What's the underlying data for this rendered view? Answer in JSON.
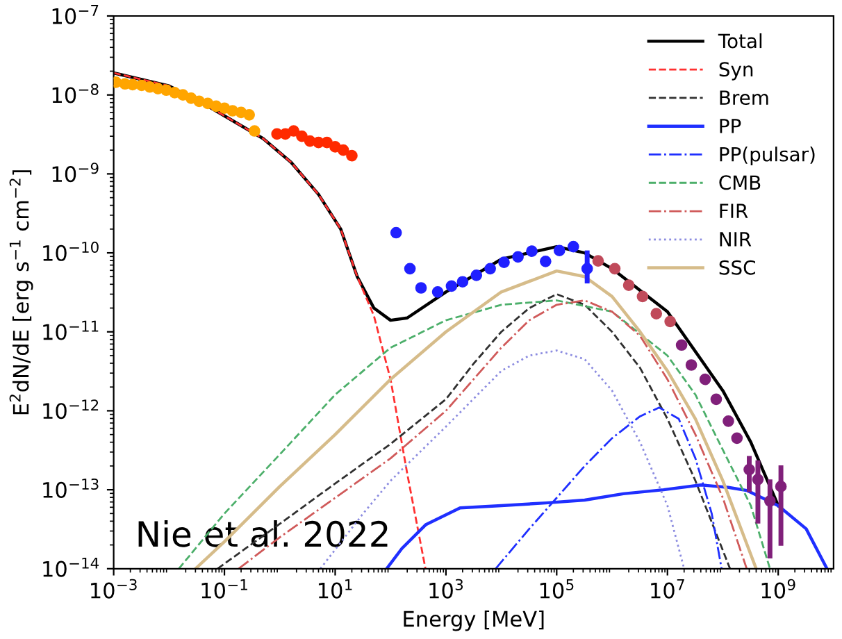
{
  "chart_data": {
    "type": "line",
    "xlabel": "Energy [MeV]",
    "ylabel": "E$^{2}$dN/dE [erg s$^{−1}$ cm$^{−2}$]",
    "log": "xy",
    "xlim": [
      0.001,
      10000000000.0
    ],
    "ylim": [
      1e-14,
      1e-07
    ],
    "xticks": [
      {
        "value": 0.001,
        "label": "10$^{−3}$"
      },
      {
        "value": 0.1,
        "label": "10$^{−1}$"
      },
      {
        "value": 10,
        "label": "10$^{1}$"
      },
      {
        "value": 1000,
        "label": "10$^{3}$"
      },
      {
        "value": 100000.0,
        "label": "10$^{5}$"
      },
      {
        "value": 10000000.0,
        "label": "10$^{7}$"
      },
      {
        "value": 1000000000.0,
        "label": "10$^{9}$"
      }
    ],
    "yticks": [
      {
        "value": 1e-14,
        "label": "10$^{−14}$"
      },
      {
        "value": 1e-13,
        "label": "10$^{−13}$"
      },
      {
        "value": 1e-12,
        "label": "10$^{−12}$"
      },
      {
        "value": 1e-11,
        "label": "10$^{−11}$"
      },
      {
        "value": 1e-10,
        "label": "10$^{−10}$"
      },
      {
        "value": 1e-09,
        "label": "10$^{−9}$"
      },
      {
        "value": 1e-08,
        "label": "10$^{−8}$"
      },
      {
        "value": 1e-07,
        "label": "10$^{−7}$"
      }
    ],
    "grid": false,
    "legend": "top right",
    "annotations": [
      "Nie et al. 2022"
    ],
    "series": [
      {
        "name": "Total",
        "type": "line",
        "line_style": "solid",
        "color": "#000000",
        "x": [
          0.001,
          0.01,
          0.056,
          0.5,
          1.6,
          5,
          12.6,
          25,
          50,
          100,
          200,
          1000,
          10000,
          100000,
          320000,
          1000000,
          10000000,
          100000000,
          320000000,
          1000000000
        ],
        "values": [
          1.9e-08,
          1.3e-08,
          6.9e-09,
          2.8e-09,
          1.4e-09,
          5.5e-10,
          2e-10,
          5e-11,
          2e-11,
          1.4e-11,
          1.5e-11,
          3.2e-11,
          8.3e-11,
          1.2e-10,
          1e-10,
          6.3e-11,
          1.8e-11,
          1.8e-12,
          4e-13,
          6.3e-14
        ]
      },
      {
        "name": "Syn",
        "type": "line",
        "line_style": "dashed",
        "color": "#ff3030",
        "x": [
          0.001,
          0.01,
          0.056,
          0.5,
          1.6,
          5,
          12.6,
          25,
          50,
          100,
          200,
          427
        ],
        "values": [
          1.9e-08,
          1.3e-08,
          6.9e-09,
          2.8e-09,
          1.4e-09,
          5.5e-10,
          2e-10,
          5e-11,
          1.6e-11,
          2.5e-12,
          1.6e-13,
          1e-14
        ]
      },
      {
        "name": "Brem",
        "type": "line",
        "line_style": "dashed",
        "color": "#303030",
        "x": [
          0.075,
          1,
          10,
          100,
          1000,
          3200,
          10000,
          32000,
          100000,
          320000,
          1000000,
          3200000,
          10000000,
          32000000,
          135000000
        ],
        "values": [
          1e-14,
          3.7e-14,
          1.2e-13,
          3.8e-13,
          1.4e-12,
          4e-12,
          1e-11,
          2e-11,
          3e-11,
          2.2e-11,
          1e-11,
          3.5e-12,
          7.9e-13,
          1.3e-13,
          1e-14
        ]
      },
      {
        "name": "PP",
        "type": "line",
        "line_style": "solid",
        "color": "#1f2fff",
        "x": [
          85,
          160,
          430,
          1800,
          10000,
          63000,
          320000,
          1600000,
          8500000,
          40000000,
          126000000,
          270000000,
          1000000000,
          3200000000,
          7600000000
        ],
        "values": [
          1e-14,
          1.8e-14,
          3.6e-14,
          5.9e-14,
          6.3e-14,
          6.8e-14,
          7.4e-14,
          8.9e-14,
          1e-13,
          1.15e-13,
          1.07e-13,
          9.8e-14,
          6.3e-14,
          3.2e-14,
          1e-14
        ]
      },
      {
        "name": "PP(pulsar)",
        "type": "line",
        "line_style": "dashdot",
        "color": "#1f2fff",
        "x": [
          7900,
          32000,
          100000,
          320000,
          1000000,
          3200000,
          7100000,
          16000000,
          32000000,
          63000000,
          95000000
        ],
        "values": [
          1e-14,
          3.2e-14,
          7.9e-14,
          2e-13,
          4.5e-13,
          8.5e-13,
          1.1e-12,
          7.9e-13,
          2.5e-13,
          5e-14,
          1e-14
        ]
      },
      {
        "name": "CMB",
        "type": "line",
        "line_style": "dashed",
        "color": "#4caf6a",
        "x": [
          0.015,
          0.1,
          1,
          10,
          100,
          1000,
          10000,
          100000,
          1000000,
          10000000,
          32000000,
          100000000,
          320000000,
          710000000
        ],
        "values": [
          1e-14,
          5e-14,
          2.8e-13,
          1.6e-12,
          6.3e-12,
          1.4e-11,
          2.2e-11,
          2.5e-11,
          1.8e-11,
          5e-12,
          1.6e-12,
          3.2e-13,
          6.3e-14,
          1e-14
        ]
      },
      {
        "name": "FIR",
        "type": "line",
        "line_style": "dashdot",
        "color": "#d05a5a",
        "x": [
          0.18,
          1,
          10,
          100,
          1000,
          10000,
          32000,
          100000,
          320000,
          1000000,
          3200000,
          10000000,
          32000000,
          100000000,
          270000000
        ],
        "values": [
          1e-14,
          2.5e-14,
          7.9e-14,
          2.5e-13,
          1e-12,
          6.3e-12,
          1.4e-11,
          2.2e-11,
          2.5e-11,
          1.8e-11,
          8.9e-12,
          2.5e-12,
          5e-13,
          7.9e-14,
          1e-14
        ]
      },
      {
        "name": "NIR",
        "type": "line",
        "line_style": "dotted",
        "color": "#8c8ce0",
        "x": [
          5.4,
          32,
          100,
          1000,
          10000,
          32000,
          100000,
          320000,
          1000000,
          3200000,
          10000000,
          20000000
        ],
        "values": [
          1e-14,
          5e-14,
          1.3e-13,
          6.3e-13,
          3.2e-12,
          5e-12,
          5.8e-12,
          4.5e-12,
          1.8e-12,
          4e-13,
          6.3e-14,
          1e-14
        ]
      },
      {
        "name": "SSC",
        "type": "line",
        "line_style": "solid",
        "color": "#d6bc8a",
        "x": [
          0.03,
          0.1,
          1,
          10,
          100,
          1000,
          10000,
          100000,
          320000,
          1000000,
          3200000,
          10000000,
          32000000,
          100000000,
          400000000
        ],
        "values": [
          1e-14,
          2.2e-14,
          1.1e-13,
          5e-13,
          2.5e-12,
          1e-11,
          3.2e-11,
          5.9e-11,
          5e-11,
          2.8e-11,
          1e-11,
          3.2e-12,
          7.9e-13,
          1.3e-13,
          1e-14
        ]
      },
      {
        "type": "scatter",
        "marker": "circle",
        "color": "#ffa500",
        "x": [
          0.0011,
          0.0016,
          0.0022,
          0.0032,
          0.0045,
          0.0063,
          0.0089,
          0.0126,
          0.0178,
          0.025,
          0.035,
          0.05,
          0.071,
          0.1,
          0.14,
          0.2,
          0.28,
          0.35
        ],
        "values": [
          1.45e-08,
          1.38e-08,
          1.35e-08,
          1.32e-08,
          1.26e-08,
          1.2e-08,
          1.15e-08,
          1.07e-08,
          1e-08,
          9.1e-09,
          8.3e-09,
          7.8e-09,
          7.2e-09,
          6.8e-09,
          6.3e-09,
          6e-09,
          5.6e-09,
          3.5e-09
        ]
      },
      {
        "type": "scatter",
        "marker": "circle",
        "color": "#ff2a00",
        "x": [
          0.89,
          1.26,
          1.78,
          2.5,
          3.5,
          5,
          7.1,
          10,
          14,
          20
        ],
        "values": [
          3.2e-09,
          3.2e-09,
          3.5e-09,
          3e-09,
          2.6e-09,
          2.5e-09,
          2.5e-09,
          2.2e-09,
          2e-09,
          1.7e-09
        ]
      },
      {
        "type": "scatter",
        "marker": "circle",
        "color": "#2020ff",
        "x": [
          126,
          224,
          355,
          710,
          1260,
          2000,
          3550,
          6300,
          11200,
          20000,
          35500,
          63000,
          112000,
          200000,
          355000
        ],
        "values": [
          1.8e-10,
          6.3e-11,
          3.6e-11,
          3.2e-11,
          3.8e-11,
          4.3e-11,
          5.2e-11,
          6.3e-11,
          7.6e-11,
          8.9e-11,
          1.05e-10,
          7.8e-11,
          1.07e-10,
          1.2e-10,
          6.3e-11
        ],
        "errors": [
          null,
          null,
          null,
          null,
          null,
          null,
          null,
          null,
          null,
          null,
          null,
          null,
          null,
          null,
          [
            4.4e-11,
            1e-10
          ]
        ]
      },
      {
        "type": "scatter",
        "marker": "circle",
        "color": "#c04a5a",
        "x": [
          560000,
          1120000,
          2000000,
          3550000,
          6300000,
          11200000
        ],
        "values": [
          7.9e-11,
          6.3e-11,
          3.9e-11,
          2.8e-11,
          1.7e-11,
          1.35e-11
        ]
      },
      {
        "type": "scatter",
        "marker": "circle",
        "color": "#80207a",
        "x": [
          18000000,
          27000000,
          48000000,
          76000000,
          126000000,
          180000000,
          300000000,
          430000000,
          710000000,
          1120000000
        ],
        "values": [
          6.8e-12,
          3.8e-12,
          2.5e-12,
          1.4e-12,
          7.4e-13,
          4.5e-13,
          1.8e-13,
          1.35e-13,
          7.2e-14,
          1.1e-13
        ],
        "errors": [
          null,
          null,
          null,
          null,
          null,
          null,
          [
            1e-13,
            2.5e-13
          ],
          [
            4e-14,
            2.2e-13
          ],
          [
            1.45e-14,
            1.26e-13
          ],
          [
            2.1e-14,
            1.9e-13
          ]
        ]
      }
    ]
  }
}
